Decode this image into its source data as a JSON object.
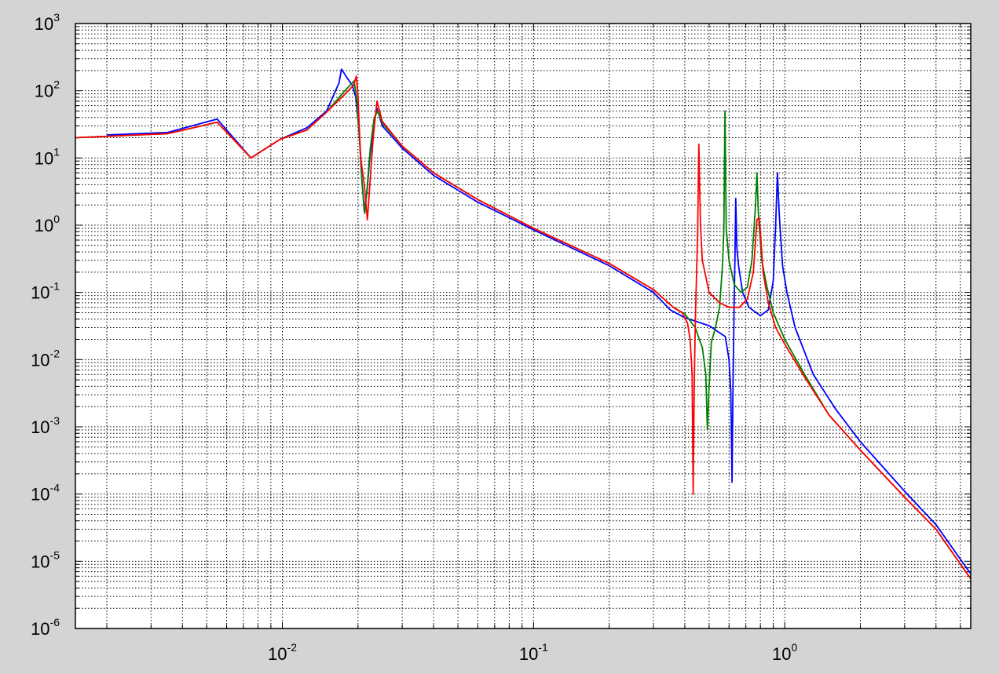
{
  "chart_data": {
    "type": "line",
    "x_scale": "log",
    "y_scale": "log",
    "xlim": [
      0.0015,
      5.5
    ],
    "ylim": [
      1e-06,
      1000
    ],
    "grid": true,
    "colors": {
      "background": "#d4d4d4",
      "plot_area": "#ffffff",
      "grid": "#000000"
    },
    "x_ticks": [
      {
        "value": 0.01,
        "base": "10",
        "exp": "-2"
      },
      {
        "value": 0.1,
        "base": "10",
        "exp": "-1"
      },
      {
        "value": 1,
        "base": "10",
        "exp": "0"
      }
    ],
    "y_ticks": [
      {
        "value": 1e-06,
        "base": "10",
        "exp": "-6"
      },
      {
        "value": 1e-05,
        "base": "10",
        "exp": "-5"
      },
      {
        "value": 0.0001,
        "base": "10",
        "exp": "-4"
      },
      {
        "value": 0.001,
        "base": "10",
        "exp": "-3"
      },
      {
        "value": 0.01,
        "base": "10",
        "exp": "-2"
      },
      {
        "value": 0.1,
        "base": "10",
        "exp": "-1"
      },
      {
        "value": 1,
        "base": "10",
        "exp": "0"
      },
      {
        "value": 10,
        "base": "10",
        "exp": "1"
      },
      {
        "value": 100,
        "base": "10",
        "exp": "2"
      },
      {
        "value": 1000,
        "base": "10",
        "exp": "3"
      }
    ],
    "series": [
      {
        "color": "#0000ff",
        "points": [
          [
            0.002,
            22
          ],
          [
            0.0035,
            24
          ],
          [
            0.0055,
            38
          ],
          [
            0.0075,
            10
          ],
          [
            0.0098,
            19
          ],
          [
            0.0125,
            28
          ],
          [
            0.015,
            50
          ],
          [
            0.0168,
            130
          ],
          [
            0.0172,
            210
          ],
          [
            0.018,
            160
          ],
          [
            0.019,
            120
          ],
          [
            0.0196,
            80
          ],
          [
            0.0202,
            25
          ],
          [
            0.0207,
            5
          ],
          [
            0.0212,
            1.6
          ],
          [
            0.0217,
            3
          ],
          [
            0.0223,
            10
          ],
          [
            0.0232,
            35
          ],
          [
            0.0238,
            55
          ],
          [
            0.025,
            30
          ],
          [
            0.03,
            14
          ],
          [
            0.04,
            5.5
          ],
          [
            0.06,
            2.2
          ],
          [
            0.1,
            0.85
          ],
          [
            0.2,
            0.25
          ],
          [
            0.3,
            0.1
          ],
          [
            0.35,
            0.055
          ],
          [
            0.4,
            0.042
          ],
          [
            0.5,
            0.032
          ],
          [
            0.58,
            0.022
          ],
          [
            0.6,
            0.01
          ],
          [
            0.61,
            0.0035
          ],
          [
            0.617,
            0.00015
          ],
          [
            0.622,
            0.003
          ],
          [
            0.628,
            0.05
          ],
          [
            0.634,
            0.4
          ],
          [
            0.638,
            2.5
          ],
          [
            0.645,
            0.45
          ],
          [
            0.655,
            0.25
          ],
          [
            0.68,
            0.1
          ],
          [
            0.72,
            0.06
          ],
          [
            0.8,
            0.045
          ],
          [
            0.86,
            0.055
          ],
          [
            0.9,
            0.15
          ],
          [
            0.92,
            1
          ],
          [
            0.935,
            6
          ],
          [
            0.95,
            1.5
          ],
          [
            0.98,
            0.25
          ],
          [
            1.02,
            0.1
          ],
          [
            1.1,
            0.03
          ],
          [
            1.3,
            0.006
          ],
          [
            1.6,
            0.0018
          ],
          [
            2.0,
            0.0006
          ],
          [
            3.0,
            0.00011
          ],
          [
            4.0,
            3.5e-05
          ],
          [
            5.5,
            6.5e-06
          ]
        ]
      },
      {
        "color": "#008000",
        "points": [
          [
            0.0015,
            20
          ],
          [
            0.0035,
            23
          ],
          [
            0.0055,
            34
          ],
          [
            0.0075,
            10
          ],
          [
            0.0098,
            19
          ],
          [
            0.0125,
            26
          ],
          [
            0.015,
            48
          ],
          [
            0.0175,
            95
          ],
          [
            0.0193,
            140
          ],
          [
            0.0198,
            70
          ],
          [
            0.0203,
            18
          ],
          [
            0.0208,
            4
          ],
          [
            0.0213,
            1.5
          ],
          [
            0.0218,
            4
          ],
          [
            0.0224,
            14
          ],
          [
            0.0232,
            40
          ],
          [
            0.024,
            50
          ],
          [
            0.025,
            33
          ],
          [
            0.03,
            15
          ],
          [
            0.04,
            6
          ],
          [
            0.06,
            2.4
          ],
          [
            0.1,
            0.9
          ],
          [
            0.2,
            0.27
          ],
          [
            0.3,
            0.11
          ],
          [
            0.36,
            0.06
          ],
          [
            0.4,
            0.048
          ],
          [
            0.44,
            0.03
          ],
          [
            0.47,
            0.015
          ],
          [
            0.485,
            0.006
          ],
          [
            0.492,
            0.0009
          ],
          [
            0.5,
            0.004
          ],
          [
            0.51,
            0.018
          ],
          [
            0.53,
            0.03
          ],
          [
            0.55,
            0.06
          ],
          [
            0.565,
            0.25
          ],
          [
            0.572,
            0.8
          ],
          [
            0.578,
            50
          ],
          [
            0.585,
            0.9
          ],
          [
            0.6,
            0.3
          ],
          [
            0.63,
            0.13
          ],
          [
            0.67,
            0.1
          ],
          [
            0.71,
            0.12
          ],
          [
            0.74,
            0.3
          ],
          [
            0.765,
            2
          ],
          [
            0.775,
            6
          ],
          [
            0.785,
            1.5
          ],
          [
            0.81,
            0.3
          ],
          [
            0.85,
            0.12
          ],
          [
            0.9,
            0.05
          ],
          [
            1.0,
            0.02
          ],
          [
            1.2,
            0.006
          ],
          [
            1.5,
            0.0015
          ],
          [
            2.0,
            0.00045
          ],
          [
            3.0,
            9e-05
          ],
          [
            4.0,
            3e-05
          ],
          [
            5.5,
            5.5e-06
          ]
        ]
      },
      {
        "color": "#ff0000",
        "points": [
          [
            0.0015,
            20
          ],
          [
            0.0035,
            23
          ],
          [
            0.0055,
            34
          ],
          [
            0.0075,
            10
          ],
          [
            0.0098,
            19
          ],
          [
            0.0125,
            26
          ],
          [
            0.015,
            48
          ],
          [
            0.0178,
            90
          ],
          [
            0.0192,
            120
          ],
          [
            0.0197,
            165
          ],
          [
            0.02,
            80
          ],
          [
            0.0205,
            10
          ],
          [
            0.0212,
            4
          ],
          [
            0.0218,
            1.2
          ],
          [
            0.0223,
            4
          ],
          [
            0.023,
            20
          ],
          [
            0.0238,
            70
          ],
          [
            0.025,
            35
          ],
          [
            0.03,
            15
          ],
          [
            0.04,
            6
          ],
          [
            0.06,
            2.4
          ],
          [
            0.1,
            0.9
          ],
          [
            0.2,
            0.27
          ],
          [
            0.3,
            0.11
          ],
          [
            0.36,
            0.06
          ],
          [
            0.39,
            0.05
          ],
          [
            0.41,
            0.035
          ],
          [
            0.42,
            0.02
          ],
          [
            0.428,
            0.006
          ],
          [
            0.432,
            0.0001
          ],
          [
            0.436,
            0.004
          ],
          [
            0.44,
            0.03
          ],
          [
            0.445,
            0.15
          ],
          [
            0.45,
            0.8
          ],
          [
            0.455,
            16
          ],
          [
            0.462,
            1
          ],
          [
            0.47,
            0.3
          ],
          [
            0.5,
            0.1
          ],
          [
            0.55,
            0.07
          ],
          [
            0.6,
            0.06
          ],
          [
            0.66,
            0.06
          ],
          [
            0.71,
            0.08
          ],
          [
            0.75,
            0.2
          ],
          [
            0.775,
            1.2
          ],
          [
            0.79,
            1.3
          ],
          [
            0.8,
            0.8
          ],
          [
            0.82,
            0.2
          ],
          [
            0.86,
            0.07
          ],
          [
            0.92,
            0.03
          ],
          [
            1.0,
            0.017
          ],
          [
            1.2,
            0.0055
          ],
          [
            1.5,
            0.0015
          ],
          [
            2.0,
            0.00045
          ],
          [
            3.0,
            9e-05
          ],
          [
            4.0,
            3e-05
          ],
          [
            5.5,
            5.5e-06
          ]
        ]
      }
    ]
  }
}
